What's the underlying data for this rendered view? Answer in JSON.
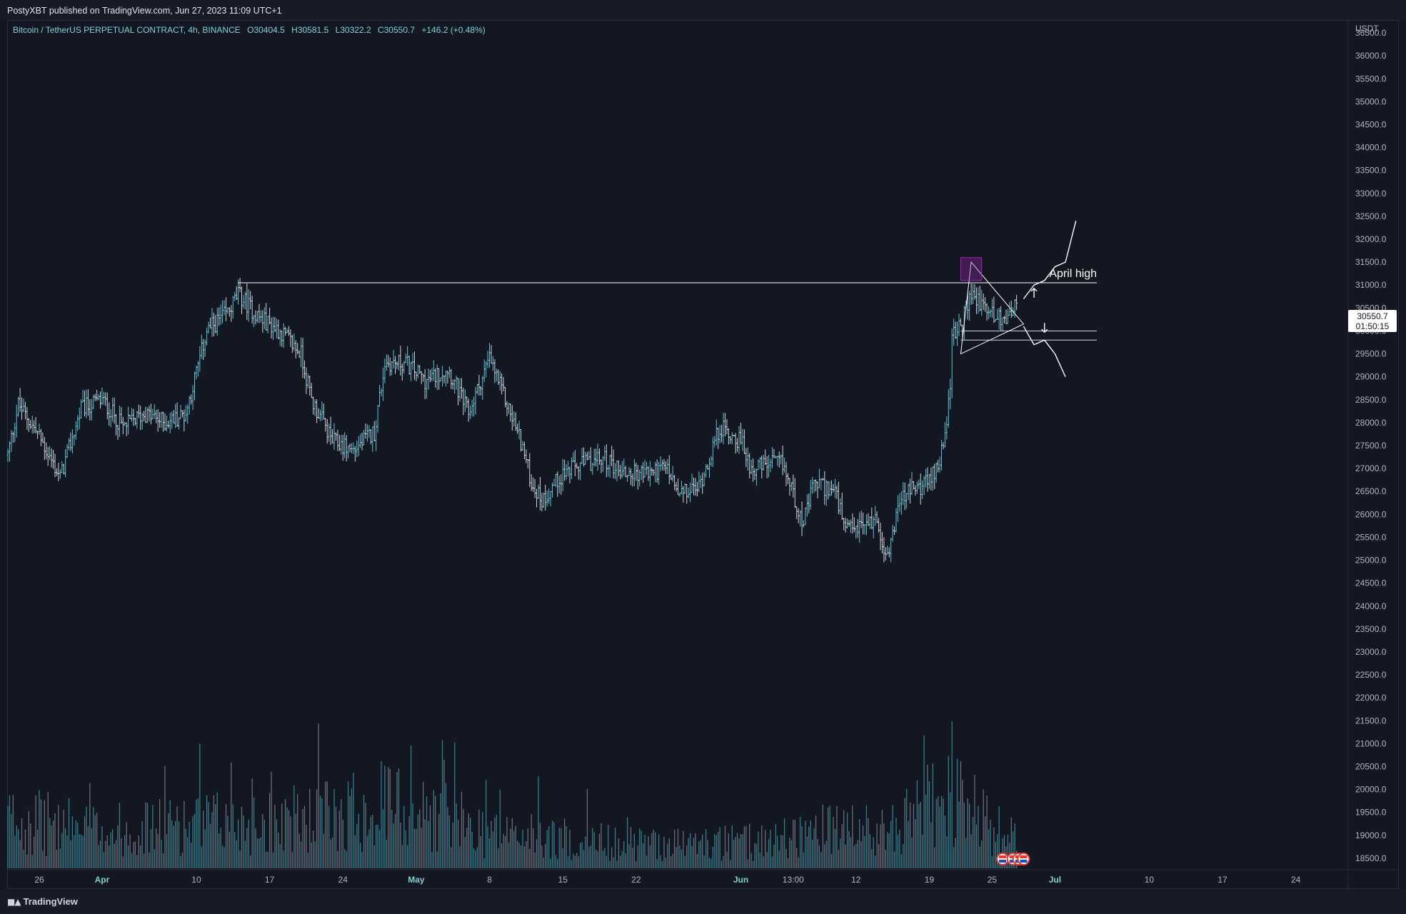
{
  "header": {
    "publisher": "PostyXBT published on TradingView.com, Jun 27, 2023 11:09 UTC+1"
  },
  "legend": {
    "symbol": "Bitcoin / TetherUS PERPETUAL CONTRACT, 4h, BINANCE",
    "open": "O30404.5",
    "high": "H30581.5",
    "low": "L30322.2",
    "close": "C30550.7",
    "change": "+146.2 (+0.48%)"
  },
  "currency": "USDT",
  "last_price": {
    "price": "30550.7",
    "countdown": "01:50:15"
  },
  "brand": {
    "name": "TradingView"
  },
  "colors": {
    "background": "#131722",
    "accent": "#4fc3d9",
    "candle_up": "#5fc4d4",
    "candle_down": "#d1d4dc",
    "annotation": "#ffffff"
  },
  "chart_data": {
    "type": "candlestick",
    "timeframe": "4h",
    "y_axis_ticks": [
      36500,
      36000,
      35500,
      35000,
      34500,
      34000,
      33500,
      33000,
      32500,
      32000,
      31500,
      31000,
      30500,
      30000,
      29500,
      29000,
      28500,
      28000,
      27500,
      27000,
      26500,
      26000,
      25500,
      25000,
      24500,
      24000,
      23500,
      23000,
      22500,
      22000,
      21500,
      21000,
      20500,
      20000,
      19500,
      19000,
      18500
    ],
    "y_tick_labels": [
      "36500.0",
      "36000.0",
      "35500.0",
      "35000.0",
      "34500.0",
      "34000.0",
      "33500.0",
      "33000.0",
      "32500.0",
      "32000.0",
      "31500.0",
      "31000.0",
      "30500.0",
      "30000.0",
      "29500.0",
      "29000.0",
      "28500.0",
      "28000.0",
      "27500.0",
      "27000.0",
      "26500.0",
      "26000.0",
      "25500.0",
      "25000.0",
      "24500.0",
      "24000.0",
      "23500.0",
      "23000.0",
      "22500.0",
      "22000.0",
      "21500.0",
      "21000.0",
      "20500.0",
      "20000.0",
      "19500.0",
      "19000.0",
      "18500.0"
    ],
    "ylim": [
      18250,
      36750
    ],
    "x_range": [
      "2023-03-23",
      "2023-07-29"
    ],
    "x_ticks": [
      {
        "label": "26",
        "date": "2023-03-26",
        "major": false
      },
      {
        "label": "Apr",
        "date": "2023-04-01",
        "major": true
      },
      {
        "label": "10",
        "date": "2023-04-10",
        "major": false
      },
      {
        "label": "17",
        "date": "2023-04-17",
        "major": false
      },
      {
        "label": "24",
        "date": "2023-04-24",
        "major": false
      },
      {
        "label": "May",
        "date": "2023-05-01",
        "major": true
      },
      {
        "label": "8",
        "date": "2023-05-08",
        "major": false
      },
      {
        "label": "15",
        "date": "2023-05-15",
        "major": false
      },
      {
        "label": "22",
        "date": "2023-05-22",
        "major": false
      },
      {
        "label": "Jun",
        "date": "2023-06-01",
        "major": true
      },
      {
        "label": "13:00",
        "date": "2023-06-06",
        "major": false
      },
      {
        "label": "12",
        "date": "2023-06-12",
        "major": false
      },
      {
        "label": "19",
        "date": "2023-06-19",
        "major": false
      },
      {
        "label": "25",
        "date": "2023-06-25",
        "major": false
      },
      {
        "label": "Jul",
        "date": "2023-07-01",
        "major": true
      },
      {
        "label": "10",
        "date": "2023-07-10",
        "major": false
      },
      {
        "label": "17",
        "date": "2023-07-17",
        "major": false
      },
      {
        "label": "24",
        "date": "2023-07-24",
        "major": false
      }
    ],
    "close_path": [
      {
        "date": "2023-03-23",
        "close": 27300
      },
      {
        "date": "2023-03-24",
        "close": 28400
      },
      {
        "date": "2023-03-26",
        "close": 27700
      },
      {
        "date": "2023-03-28",
        "close": 26800
      },
      {
        "date": "2023-03-30",
        "close": 28300
      },
      {
        "date": "2023-04-01",
        "close": 28500
      },
      {
        "date": "2023-04-03",
        "close": 27900
      },
      {
        "date": "2023-04-05",
        "close": 28200
      },
      {
        "date": "2023-04-07",
        "close": 28000
      },
      {
        "date": "2023-04-09",
        "close": 28200
      },
      {
        "date": "2023-04-11",
        "close": 30000
      },
      {
        "date": "2023-04-13",
        "close": 30400
      },
      {
        "date": "2023-04-14",
        "close": 30800
      },
      {
        "date": "2023-04-16",
        "close": 30300
      },
      {
        "date": "2023-04-18",
        "close": 30000
      },
      {
        "date": "2023-04-20",
        "close": 29500
      },
      {
        "date": "2023-04-21",
        "close": 28500
      },
      {
        "date": "2023-04-23",
        "close": 27600
      },
      {
        "date": "2023-04-25",
        "close": 27400
      },
      {
        "date": "2023-04-27",
        "close": 27800
      },
      {
        "date": "2023-04-28",
        "close": 29300
      },
      {
        "date": "2023-04-30",
        "close": 29300
      },
      {
        "date": "2023-05-02",
        "close": 28900
      },
      {
        "date": "2023-05-04",
        "close": 29200
      },
      {
        "date": "2023-05-06",
        "close": 28200
      },
      {
        "date": "2023-05-08",
        "close": 29400
      },
      {
        "date": "2023-05-09",
        "close": 28800
      },
      {
        "date": "2023-05-11",
        "close": 27600
      },
      {
        "date": "2023-05-12",
        "close": 26700
      },
      {
        "date": "2023-05-13",
        "close": 26300
      },
      {
        "date": "2023-05-15",
        "close": 26900
      },
      {
        "date": "2023-05-17",
        "close": 27100
      },
      {
        "date": "2023-05-19",
        "close": 27200
      },
      {
        "date": "2023-05-21",
        "close": 26900
      },
      {
        "date": "2023-05-23",
        "close": 26900
      },
      {
        "date": "2023-05-25",
        "close": 27000
      },
      {
        "date": "2023-05-26",
        "close": 26400
      },
      {
        "date": "2023-05-28",
        "close": 26600
      },
      {
        "date": "2023-05-30",
        "close": 27900
      },
      {
        "date": "2023-06-01",
        "close": 27600
      },
      {
        "date": "2023-06-02",
        "close": 27000
      },
      {
        "date": "2023-06-04",
        "close": 27100
      },
      {
        "date": "2023-06-05",
        "close": 27100
      },
      {
        "date": "2023-06-07",
        "close": 25800
      },
      {
        "date": "2023-06-08",
        "close": 26700
      },
      {
        "date": "2023-06-10",
        "close": 26500
      },
      {
        "date": "2023-06-11",
        "close": 25600
      },
      {
        "date": "2023-06-13",
        "close": 25800
      },
      {
        "date": "2023-06-14",
        "close": 25900
      },
      {
        "date": "2023-06-15",
        "close": 25000
      },
      {
        "date": "2023-06-16",
        "close": 26200
      },
      {
        "date": "2023-06-17",
        "close": 26500
      },
      {
        "date": "2023-06-19",
        "close": 26700
      },
      {
        "date": "2023-06-20",
        "close": 27200
      },
      {
        "date": "2023-06-21",
        "close": 28600
      },
      {
        "date": "2023-06-21",
        "close": 29800
      },
      {
        "date": "2023-06-22",
        "close": 30100
      },
      {
        "date": "2023-06-23",
        "close": 30800
      },
      {
        "date": "2023-06-24",
        "close": 30600
      },
      {
        "date": "2023-06-25",
        "close": 30400
      },
      {
        "date": "2023-06-26",
        "close": 30200
      },
      {
        "date": "2023-06-27",
        "close": 30550
      }
    ],
    "volume_path": [
      {
        "date": "2023-03-23",
        "level": 0.6
      },
      {
        "date": "2023-04-01",
        "level": 0.45
      },
      {
        "date": "2023-04-12",
        "level": 0.55
      },
      {
        "date": "2023-04-21",
        "level": 0.6
      },
      {
        "date": "2023-04-28",
        "level": 0.8
      },
      {
        "date": "2023-05-08",
        "level": 0.45
      },
      {
        "date": "2023-05-15",
        "level": 0.35
      },
      {
        "date": "2023-05-22",
        "level": 0.3
      },
      {
        "date": "2023-06-01",
        "level": 0.3
      },
      {
        "date": "2023-06-08",
        "level": 0.45
      },
      {
        "date": "2023-06-15",
        "level": 0.45
      },
      {
        "date": "2023-06-21",
        "level": 0.85
      },
      {
        "date": "2023-06-27",
        "level": 0.35
      }
    ],
    "annotations": {
      "april_high_label": "April high",
      "april_high_price": 31050,
      "april_high_start": "2023-04-14",
      "line_end": "2023-07-05",
      "support_upper": 30000,
      "support_lower": 29800,
      "support_start": "2023-06-22",
      "triangle": [
        {
          "date": "2023-06-23",
          "price": 31500
        },
        {
          "date": "2023-06-28",
          "price": 30150
        },
        {
          "date": "2023-06-22",
          "price": 29500
        }
      ],
      "highlight_box": {
        "start": "2023-06-22",
        "end": "2023-06-24",
        "top": 31600,
        "bottom": 31100
      },
      "bull_path": [
        {
          "date": "2023-06-28",
          "price": 30700
        },
        {
          "date": "2023-06-29",
          "price": 31000
        },
        {
          "date": "2023-06-30",
          "price": 31100
        },
        {
          "date": "2023-07-01",
          "price": 31400
        },
        {
          "date": "2023-07-02",
          "price": 31500
        },
        {
          "date": "2023-07-03",
          "price": 32400
        }
      ],
      "bear_path": [
        {
          "date": "2023-06-28",
          "price": 30100
        },
        {
          "date": "2023-06-29",
          "price": 29700
        },
        {
          "date": "2023-06-30",
          "price": 29800
        },
        {
          "date": "2023-07-01",
          "price": 29500
        },
        {
          "date": "2023-07-02",
          "price": 29000
        }
      ],
      "up_arrow": {
        "date": "2023-06-29",
        "price": 30850
      },
      "down_arrow": {
        "date": "2023-06-30",
        "price": 30050
      }
    },
    "event_markers": [
      "2023-06-26",
      "2023-06-27",
      "2023-06-27",
      "2023-06-28"
    ]
  }
}
